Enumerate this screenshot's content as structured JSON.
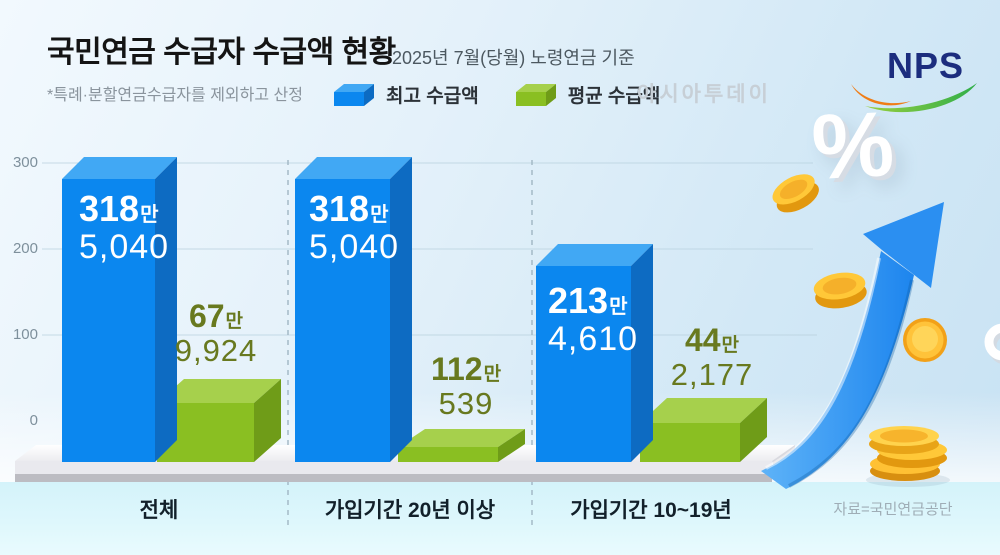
{
  "header": {
    "title": "국민연금 수급자 수급액 현황",
    "subtitle": "2025년 7월(당월) 노령연금 기준",
    "note": "*특례·분할연금수급자를 제외하고 산정"
  },
  "watermark": "아시아투데이",
  "logo": {
    "text": "NPS"
  },
  "source": "자료=국민연금공단",
  "colors": {
    "max_front": "#0b87ef",
    "max_top": "#41a8f4",
    "max_side": "#0d6bc2",
    "avg_front": "#8abf22",
    "avg_top": "#a6d04c",
    "avg_side": "#6f9c18",
    "max_label": "#ffffff",
    "avg_label": "#68791f",
    "arrow": "#2a90f2",
    "coin": "#ffc838",
    "band": "#d4f3fa"
  },
  "chart_data": {
    "type": "bar",
    "title": "국민연금 수급자 수급액 현황",
    "subtitle": "2025년 7월(당월) 노령연금 기준",
    "categories": [
      "전체",
      "가입기간 20년 이상",
      "가입기간 10~19년"
    ],
    "series": [
      {
        "name": "최고 수급액",
        "color_front": "#0b87ef",
        "color_top": "#41a8f4",
        "color_side": "#0d6bc2",
        "label_color": "#ffffff",
        "values_won": [
          3185040,
          3185040,
          2134610
        ],
        "labels": [
          [
            "318",
            "만",
            "5,040"
          ],
          [
            "318",
            "만",
            "5,040"
          ],
          [
            "213",
            "만",
            "4,610"
          ]
        ]
      },
      {
        "name": "평균 수급액",
        "color_front": "#8abf22",
        "color_top": "#a6d04c",
        "color_side": "#6f9c18",
        "label_color": "#68791f",
        "values_won": [
          679924,
          1120539,
          442177
        ],
        "labels": [
          [
            "67",
            "만",
            "9,924"
          ],
          [
            "112",
            "만",
            "539"
          ],
          [
            "44",
            "만",
            "2,177"
          ]
        ]
      }
    ],
    "yticks": [
      300,
      200,
      100,
      0
    ],
    "grid": true,
    "legend_position": "top",
    "decorations": [
      "%",
      "gold-coins",
      "up-trend-arrow"
    ]
  }
}
